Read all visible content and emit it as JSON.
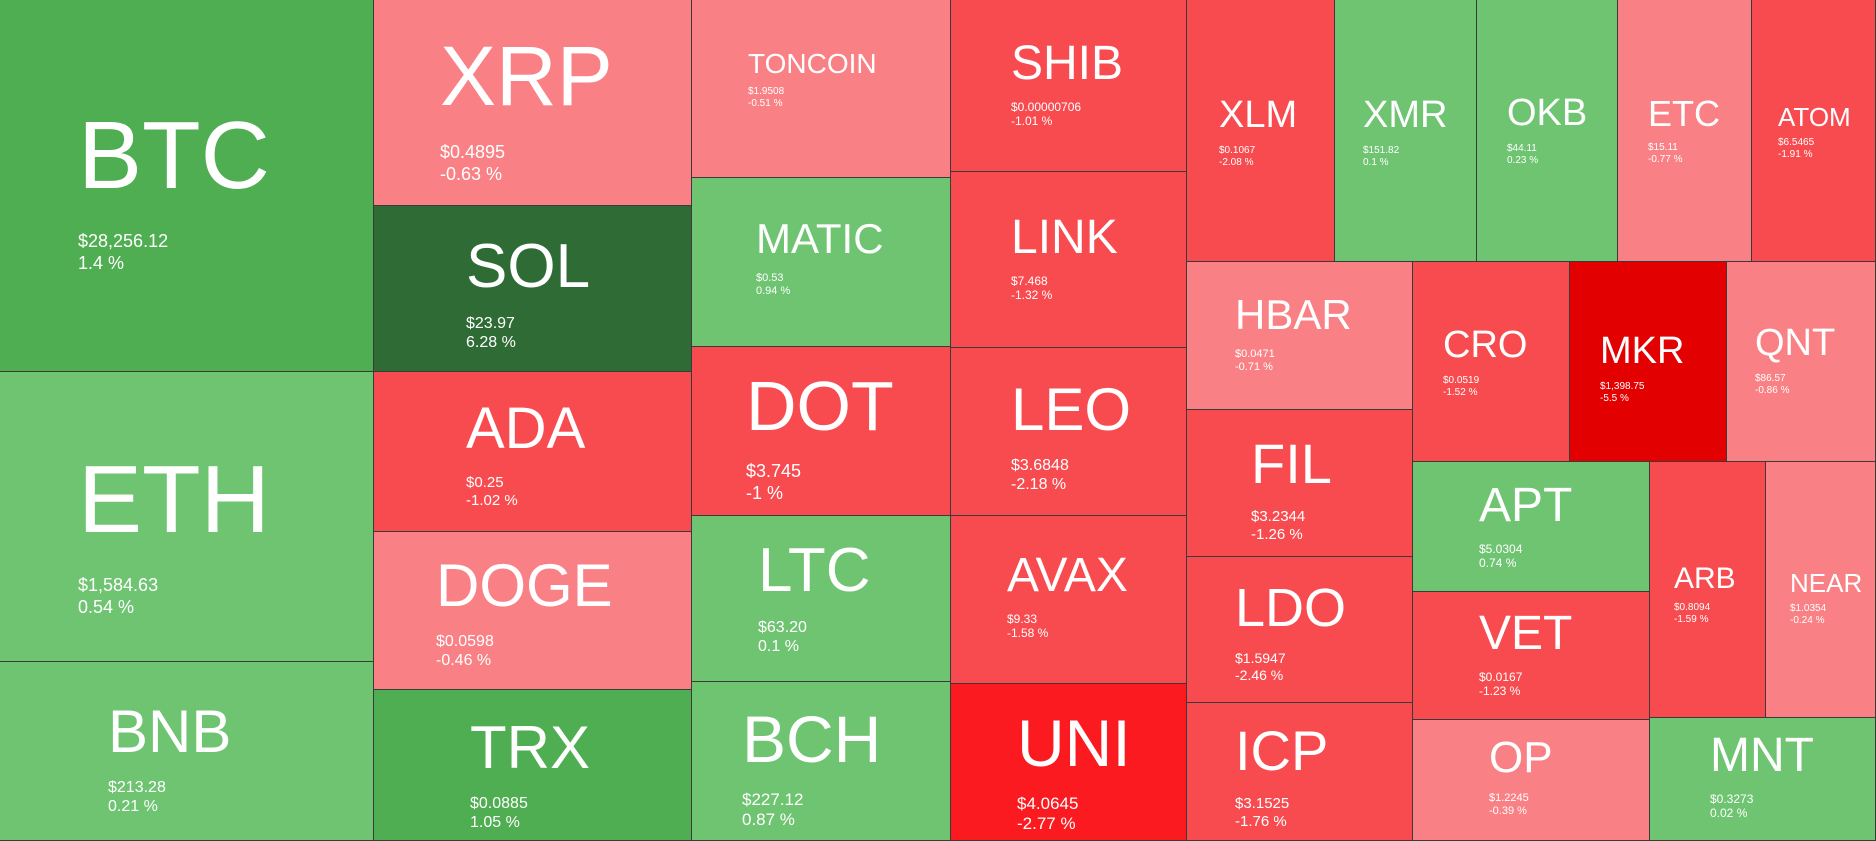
{
  "colors": {
    "up_light": "#6fc472",
    "up_mid": "#4fae52",
    "up_strong": "#2f6b35",
    "down_light": "#f98185",
    "down_mid": "#f84b4f",
    "down_strong": "#fb1a1f",
    "down_extreme": "#e30000"
  },
  "chart_data": {
    "type": "treemap",
    "title": "",
    "items": [
      {
        "symbol": "BTC",
        "price": "$28,256.12",
        "change": "1.4 %",
        "change_pct": 1.4,
        "color": "#4fae52"
      },
      {
        "symbol": "ETH",
        "price": "$1,584.63",
        "change": "0.54 %",
        "change_pct": 0.54,
        "color": "#6fc472"
      },
      {
        "symbol": "BNB",
        "price": "$213.28",
        "change": "0.21 %",
        "change_pct": 0.21,
        "color": "#6fc472"
      },
      {
        "symbol": "XRP",
        "price": "$0.4895",
        "change": "-0.63 %",
        "change_pct": -0.63,
        "color": "#f98185"
      },
      {
        "symbol": "SOL",
        "price": "$23.97",
        "change": "6.28 %",
        "change_pct": 6.28,
        "color": "#2f6b35"
      },
      {
        "symbol": "ADA",
        "price": "$0.25",
        "change": "-1.02 %",
        "change_pct": -1.02,
        "color": "#f84b4f"
      },
      {
        "symbol": "DOGE",
        "price": "$0.0598",
        "change": "-0.46 %",
        "change_pct": -0.46,
        "color": "#f98185"
      },
      {
        "symbol": "TRX",
        "price": "$0.0885",
        "change": "1.05 %",
        "change_pct": 1.05,
        "color": "#4fae52"
      },
      {
        "symbol": "TONCOIN",
        "price": "$1.9508",
        "change": "-0.51 %",
        "change_pct": -0.51,
        "color": "#f98185"
      },
      {
        "symbol": "MATIC",
        "price": "$0.53",
        "change": "0.94 %",
        "change_pct": 0.94,
        "color": "#6fc472"
      },
      {
        "symbol": "DOT",
        "price": "$3.745",
        "change": "-1 %",
        "change_pct": -1.0,
        "color": "#f84b4f"
      },
      {
        "symbol": "LTC",
        "price": "$63.20",
        "change": "0.1 %",
        "change_pct": 0.1,
        "color": "#6fc472"
      },
      {
        "symbol": "BCH",
        "price": "$227.12",
        "change": "0.87 %",
        "change_pct": 0.87,
        "color": "#6fc472"
      },
      {
        "symbol": "SHIB",
        "price": "$0.00000706",
        "change": "-1.01 %",
        "change_pct": -1.01,
        "color": "#f84b4f"
      },
      {
        "symbol": "LINK",
        "price": "$7.468",
        "change": "-1.32 %",
        "change_pct": -1.32,
        "color": "#f84b4f"
      },
      {
        "symbol": "LEO",
        "price": "$3.6848",
        "change": "-2.18 %",
        "change_pct": -2.18,
        "color": "#f84b4f"
      },
      {
        "symbol": "AVAX",
        "price": "$9.33",
        "change": "-1.58 %",
        "change_pct": -1.58,
        "color": "#f84b4f"
      },
      {
        "symbol": "UNI",
        "price": "$4.0645",
        "change": "-2.77 %",
        "change_pct": -2.77,
        "color": "#fb1a1f"
      },
      {
        "symbol": "XLM",
        "price": "$0.1067",
        "change": "-2.08 %",
        "change_pct": -2.08,
        "color": "#f84b4f"
      },
      {
        "symbol": "XMR",
        "price": "$151.82",
        "change": "0.1 %",
        "change_pct": 0.1,
        "color": "#6fc472"
      },
      {
        "symbol": "OKB",
        "price": "$44.11",
        "change": "0.23 %",
        "change_pct": 0.23,
        "color": "#6fc472"
      },
      {
        "symbol": "ETC",
        "price": "$15.11",
        "change": "-0.77 %",
        "change_pct": -0.77,
        "color": "#f98185"
      },
      {
        "symbol": "ATOM",
        "price": "$6.5465",
        "change": "-1.91 %",
        "change_pct": -1.91,
        "color": "#f84b4f"
      },
      {
        "symbol": "HBAR",
        "price": "$0.0471",
        "change": "-0.71 %",
        "change_pct": -0.71,
        "color": "#f98185"
      },
      {
        "symbol": "FIL",
        "price": "$3.2344",
        "change": "-1.26 %",
        "change_pct": -1.26,
        "color": "#f84b4f"
      },
      {
        "symbol": "LDO",
        "price": "$1.5947",
        "change": "-2.46 %",
        "change_pct": -2.46,
        "color": "#f84b4f"
      },
      {
        "symbol": "ICP",
        "price": "$3.1525",
        "change": "-1.76 %",
        "change_pct": -1.76,
        "color": "#f84b4f"
      },
      {
        "symbol": "CRO",
        "price": "$0.0519",
        "change": "-1.52 %",
        "change_pct": -1.52,
        "color": "#f84b4f"
      },
      {
        "symbol": "MKR",
        "price": "$1,398.75",
        "change": "-5.5 %",
        "change_pct": -5.5,
        "color": "#e30000"
      },
      {
        "symbol": "QNT",
        "price": "$86.57",
        "change": "-0.86 %",
        "change_pct": -0.86,
        "color": "#f98185"
      },
      {
        "symbol": "APT",
        "price": "$5.0304",
        "change": "0.74 %",
        "change_pct": 0.74,
        "color": "#6fc472"
      },
      {
        "symbol": "VET",
        "price": "$0.0167",
        "change": "-1.23 %",
        "change_pct": -1.23,
        "color": "#f84b4f"
      },
      {
        "symbol": "OP",
        "price": "$1.2245",
        "change": "-0.39 %",
        "change_pct": -0.39,
        "color": "#f98185"
      },
      {
        "symbol": "ARB",
        "price": "$0.8094",
        "change": "-1.59 %",
        "change_pct": -1.59,
        "color": "#f84b4f"
      },
      {
        "symbol": "NEAR",
        "price": "$1.0354",
        "change": "-0.24 %",
        "change_pct": -0.24,
        "color": "#f98185"
      },
      {
        "symbol": "MNT",
        "price": "$0.3273",
        "change": "0.02 %",
        "change_pct": 0.02,
        "color": "#6fc472"
      }
    ]
  }
}
